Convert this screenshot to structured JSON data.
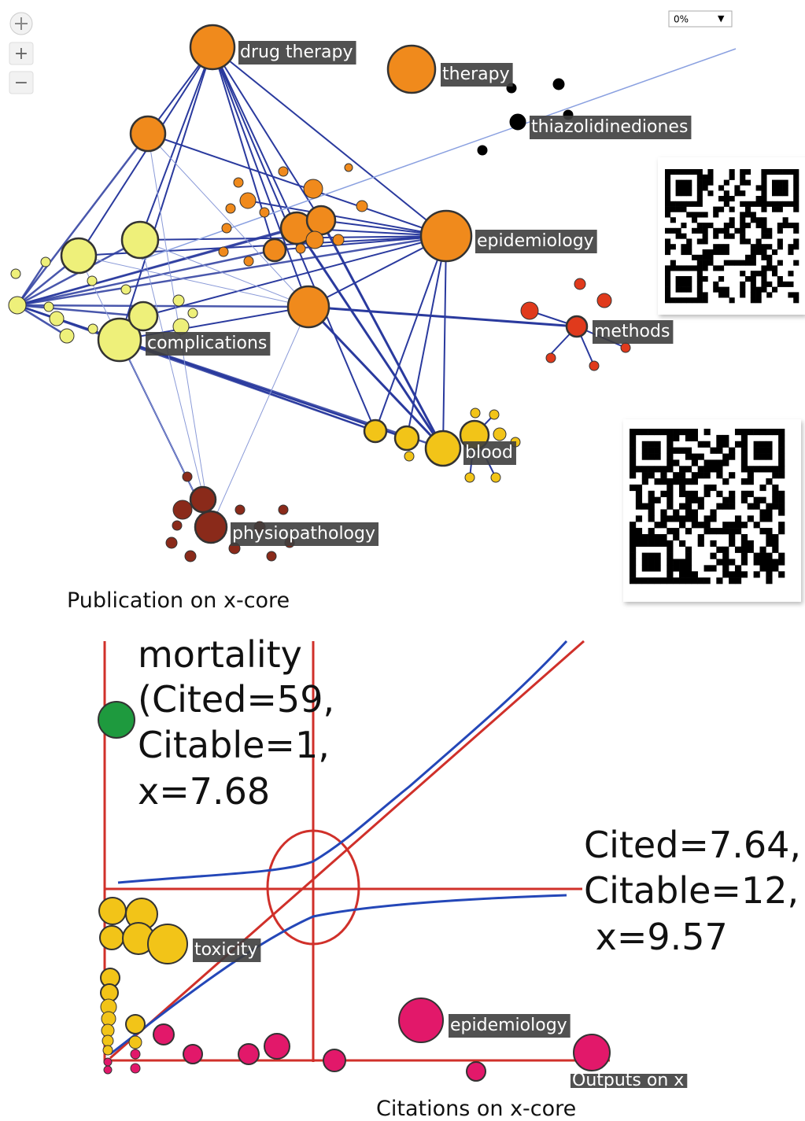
{
  "controls": {
    "zoom_in": "+",
    "zoom_out": "−",
    "dropdown": "0%",
    "dropdown_arrow": "▼"
  },
  "network": {
    "nodes": [
      {
        "label": "drug therapy"
      },
      {
        "label": "therapy"
      },
      {
        "label": "thiazolidinediones"
      },
      {
        "label": "epidemiology"
      },
      {
        "label": "methods"
      },
      {
        "label": "complications"
      },
      {
        "label": "blood"
      },
      {
        "label": "physiopathology"
      }
    ],
    "caption": "Publication on x-core"
  },
  "plot": {
    "annotation_left": [
      "mortality",
      "(Cited=59,",
      "Citable=1,",
      "x=7.68"
    ],
    "annotation_right": [
      "Cited=7.64,",
      "Citable=12,",
      " x=9.57"
    ],
    "labels": [
      "toxicity",
      "epidemiology"
    ],
    "legend_tag": "Outputs on x",
    "caption": "Citations on x-core"
  }
}
